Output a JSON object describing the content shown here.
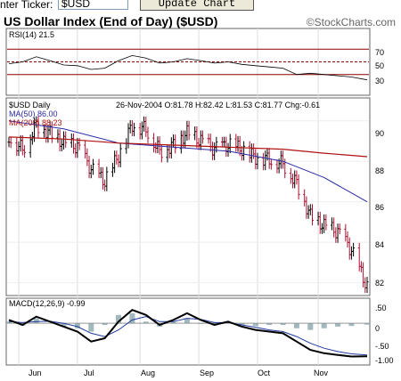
{
  "header": {
    "ticker_label": "nter Ticker:",
    "ticker_value": "$USD",
    "update_label": "Update Chart",
    "title": "US Dollar Index (End of Day) ($USD)",
    "brand": "©StockCharts.com"
  },
  "rsi_panel": {
    "label": "RSI(14) 21.5",
    "levels": [
      "70",
      "50",
      "30"
    ]
  },
  "price_panel": {
    "symbol_label": "$USD Daily",
    "ohlc_label": "26-Nov-2004 O:81.78 H:82.42 L:81.53 C:81.77 Chg:-0.61",
    "ma50_label": "MA(50) 86.00",
    "ma200_label": "MA(200) 88.23",
    "y_ticks": [
      "90",
      "88",
      "86",
      "84",
      "82"
    ]
  },
  "macd_panel": {
    "label": "MACD(12,26,9) -0.99",
    "y_ticks": [
      ".50",
      "0",
      "-.50",
      "-1.00"
    ]
  },
  "x_months": [
    "Jun",
    "Jul",
    "Aug",
    "Sep",
    "Oct",
    "Nov"
  ],
  "colors": {
    "price_bars": "#000000",
    "down_bars": "#b01030",
    "ma50": "#2a2aa8",
    "ma200": "#b01010",
    "rsi_line": "#000000",
    "level_red": "#8b0000",
    "macd": "#000000",
    "signal": "#1f3aa0",
    "histogram": "#7a9aa0"
  },
  "chart_data": {
    "type": "line",
    "title": "US Dollar Index (End of Day) ($USD)",
    "x_range": [
      "2004-05-27",
      "2004-11-26"
    ],
    "ylim": [
      81.5,
      91
    ],
    "series": [
      {
        "name": "$USD Daily",
        "x": [
          "2004-05-27",
          "2004-06-03",
          "2004-06-10",
          "2004-06-17",
          "2004-06-24",
          "2004-07-01",
          "2004-07-08",
          "2004-07-15",
          "2004-07-22",
          "2004-07-29",
          "2004-08-05",
          "2004-08-12",
          "2004-08-19",
          "2004-08-26",
          "2004-09-02",
          "2004-09-09",
          "2004-09-16",
          "2004-09-23",
          "2004-09-30",
          "2004-10-07",
          "2004-10-14",
          "2004-10-21",
          "2004-10-28",
          "2004-11-04",
          "2004-11-11",
          "2004-11-18",
          "2004-11-26"
        ],
        "values": [
          89.2,
          88.6,
          89.8,
          89.4,
          88.9,
          88.7,
          87.6,
          87.0,
          88.3,
          89.8,
          89.6,
          88.5,
          88.8,
          89.4,
          89.0,
          88.6,
          88.8,
          88.6,
          88.2,
          88.1,
          87.9,
          86.9,
          85.3,
          84.8,
          84.5,
          83.6,
          81.77
        ]
      },
      {
        "name": "MA(50)",
        "x": [
          "2004-05-27",
          "2004-06-24",
          "2004-07-22",
          "2004-08-19",
          "2004-09-16",
          "2004-10-14",
          "2004-11-04",
          "2004-11-26"
        ],
        "values": [
          90.0,
          89.6,
          88.9,
          88.7,
          88.5,
          88.0,
          87.2,
          86.0
        ]
      },
      {
        "name": "MA(200)",
        "x": [
          "2004-05-27",
          "2004-06-24",
          "2004-07-22",
          "2004-08-19",
          "2004-09-16",
          "2004-10-14",
          "2004-11-04",
          "2004-11-26"
        ],
        "values": [
          89.2,
          89.1,
          88.9,
          88.8,
          88.7,
          88.6,
          88.4,
          88.23
        ]
      }
    ],
    "rsi": {
      "ylim": [
        0,
        100
      ],
      "levels": [
        70,
        50,
        30
      ],
      "values": [
        47,
        50,
        58,
        52,
        45,
        44,
        38,
        40,
        52,
        60,
        56,
        48,
        50,
        55,
        52,
        48,
        50,
        46,
        44,
        42,
        40,
        30,
        32,
        30,
        28,
        26,
        21.5
      ]
    },
    "macd": {
      "ylim": [
        -1.2,
        0.7
      ],
      "macd": [
        0.1,
        -0.05,
        0.2,
        0.05,
        -0.1,
        -0.25,
        -0.55,
        -0.45,
        0.05,
        0.4,
        0.25,
        -0.05,
        0.1,
        0.3,
        0.1,
        -0.05,
        0.05,
        -0.1,
        -0.2,
        -0.25,
        -0.3,
        -0.55,
        -0.8,
        -0.9,
        -0.95,
        -1.0,
        -0.99
      ],
      "signal": [
        0.05,
        0.02,
        0.05,
        0.06,
        0.0,
        -0.1,
        -0.3,
        -0.4,
        -0.2,
        0.1,
        0.2,
        0.05,
        0.05,
        0.15,
        0.12,
        0.02,
        0.02,
        -0.05,
        -0.12,
        -0.2,
        -0.25,
        -0.4,
        -0.6,
        -0.75,
        -0.85,
        -0.92,
        -0.95
      ]
    }
  }
}
